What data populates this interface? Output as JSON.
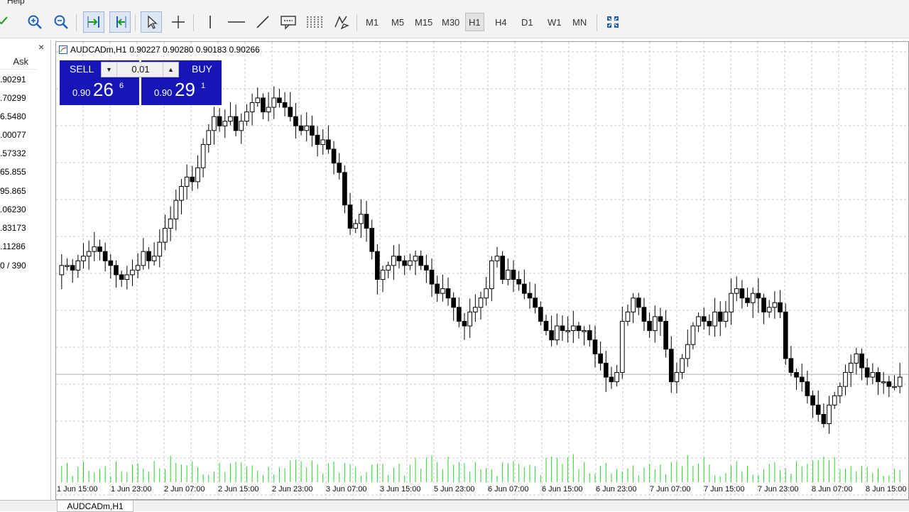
{
  "menubar": {
    "label": "Help"
  },
  "toolbar": {
    "timeframes": [
      {
        "label": "M1",
        "active": false
      },
      {
        "label": "M5",
        "active": false
      },
      {
        "label": "M15",
        "active": false
      },
      {
        "label": "M30",
        "active": false
      },
      {
        "label": "H1",
        "active": true
      },
      {
        "label": "H4",
        "active": false
      },
      {
        "label": "D1",
        "active": false
      },
      {
        "label": "W1",
        "active": false
      },
      {
        "label": "MN",
        "active": false
      }
    ]
  },
  "market_watch": {
    "close_label": "×",
    "ask_header": "Ask",
    "rows": [
      {
        "value": ".90291",
        "color": "#1a1aa6"
      },
      {
        "value": ".70299",
        "color": "#1a1aa6"
      },
      {
        "value": "6.5480",
        "color": "#9a9a9a"
      },
      {
        "value": ".00077",
        "color": "#d01010"
      },
      {
        "value": ".57332",
        "color": "#d01010"
      },
      {
        "value": "65.855",
        "color": "#9a9a9a"
      },
      {
        "value": "95.865",
        "color": "#1a1aa6"
      },
      {
        "value": ".06230",
        "color": "#d01010"
      },
      {
        "value": ".83173",
        "color": "#1a1aa6"
      },
      {
        "value": ".11286",
        "color": "#d01010"
      },
      {
        "value": "0 / 390",
        "color": "#555555"
      }
    ]
  },
  "chart": {
    "title": "AUDCADm,H1",
    "ohlc": "0.90227 0.90280 0.90183 0.90266",
    "trade_panel": {
      "sell_label": "SELL",
      "buy_label": "BUY",
      "lot": "0.01",
      "sell_prefix": "0.90",
      "sell_big": "26",
      "sell_sup": "6",
      "buy_prefix": "0.90",
      "buy_big": "29",
      "buy_sup": "1"
    },
    "time_labels": [
      "1 Jun 15:00",
      "1 Jun 23:00",
      "2 Jun 07:00",
      "2 Jun 15:00",
      "2 Jun 23:00",
      "3 Jun 07:00",
      "3 Jun 15:00",
      "5 Jun 23:00",
      "6 Jun 07:00",
      "6 Jun 15:00",
      "6 Jun 23:00",
      "7 Jun 07:00",
      "7 Jun 15:00",
      "7 Jun 23:00",
      "8 Jun 07:00",
      "8 Jun 15:00"
    ],
    "colors": {
      "grid": "#c8c8c8",
      "candle": "#000000",
      "volume": "#2bd12b",
      "bid_line": "#b0b0b0"
    }
  },
  "chart_data": {
    "type": "candlestick",
    "symbol": "AUDCADm",
    "timeframe": "H1",
    "last_ohlc": [
      0.90227,
      0.9028,
      0.90183,
      0.90266
    ],
    "bid": 0.90266,
    "ask": 0.90291,
    "x_labels": [
      "1 Jun 15:00",
      "1 Jun 23:00",
      "2 Jun 07:00",
      "2 Jun 15:00",
      "2 Jun 23:00",
      "3 Jun 07:00",
      "3 Jun 15:00",
      "5 Jun 23:00",
      "6 Jun 07:00",
      "6 Jun 15:00",
      "6 Jun 23:00",
      "7 Jun 07:00",
      "7 Jun 15:00",
      "7 Jun 23:00",
      "8 Jun 07:00",
      "8 Jun 15:00"
    ],
    "close_path": [
      0.905,
      0.905,
      0.9049,
      0.9051,
      0.9052,
      0.9053,
      0.9054,
      0.9053,
      0.9051,
      0.905,
      0.9048,
      0.9047,
      0.9048,
      0.9049,
      0.905,
      0.9053,
      0.9051,
      0.9052,
      0.9055,
      0.9058,
      0.906,
      0.9064,
      0.9067,
      0.9069,
      0.9068,
      0.9071,
      0.9076,
      0.9079,
      0.9082,
      0.908,
      0.9081,
      0.9082,
      0.9079,
      0.9081,
      0.9083,
      0.9085,
      0.9086,
      0.9083,
      0.9084,
      0.9086,
      0.9085,
      0.9084,
      0.9082,
      0.908,
      0.9079,
      0.908,
      0.9078,
      0.9076,
      0.9077,
      0.9075,
      0.9072,
      0.907,
      0.9063,
      0.9058,
      0.9059,
      0.9061,
      0.9058,
      0.9053,
      0.9047,
      0.9049,
      0.905,
      0.9052,
      0.9051,
      0.905,
      0.9051,
      0.9052,
      0.905,
      0.9049,
      0.9046,
      0.9044,
      0.9045,
      0.9043,
      0.9041,
      0.9038,
      0.9037,
      0.904,
      0.9041,
      0.9043,
      0.9045,
      0.9051,
      0.9052,
      0.9047,
      0.9049,
      0.9047,
      0.9046,
      0.9044,
      0.9043,
      0.9041,
      0.9038,
      0.9036,
      0.9034,
      0.9037,
      0.9036,
      0.9036,
      0.9037,
      0.9036,
      0.9036,
      0.9034,
      0.9031,
      0.9029,
      0.9026,
      0.9025,
      0.9027,
      0.9038,
      0.904,
      0.9043,
      0.9041,
      0.9038,
      0.9036,
      0.9039,
      0.9038,
      0.9032,
      0.9025,
      0.9027,
      0.903,
      0.9033,
      0.9037,
      0.9039,
      0.9038,
      0.9037,
      0.904,
      0.9038,
      0.904,
      0.9044,
      0.9045,
      0.9043,
      0.9042,
      0.9044,
      0.9043,
      0.904,
      0.9041,
      0.9042,
      0.904,
      0.903,
      0.9027,
      0.9026,
      0.9025,
      0.9022,
      0.902,
      0.9018,
      0.9016,
      0.902,
      0.9022,
      0.9024,
      0.9027,
      0.9029,
      0.9031,
      0.9028,
      0.9026,
      0.9027,
      0.9025,
      0.9025,
      0.9024,
      0.9024,
      0.9026
    ]
  }
}
